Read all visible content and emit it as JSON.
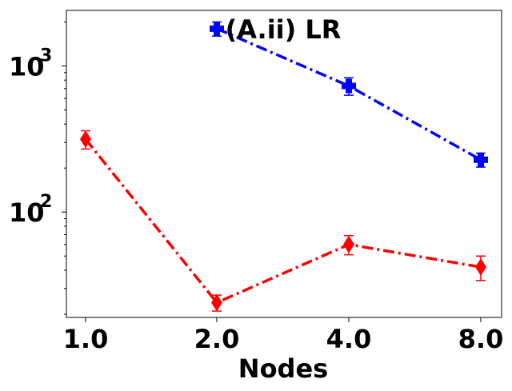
{
  "chart_data": {
    "type": "line",
    "title": "(A.ii) LR",
    "xlabel": "Nodes",
    "ylabel": "",
    "yscale": "log",
    "ylim": [
      19,
      2400
    ],
    "y_ticks": [
      {
        "value": 100,
        "base": "10",
        "exp": "2"
      },
      {
        "value": 1000,
        "base": "10",
        "exp": "3"
      }
    ],
    "categories": [
      "1.0",
      "2.0",
      "4.0",
      "8.0"
    ],
    "grid": false,
    "series": [
      {
        "color": "#0000ff",
        "marker": "plus",
        "linestyle": "dashdot",
        "values": [
          null,
          1800,
          730,
          228
        ],
        "errors": [
          null,
          200,
          100,
          25
        ]
      },
      {
        "color": "#ff0000",
        "marker": "diamond",
        "linestyle": "dashdot",
        "values": [
          315,
          24,
          60,
          42
        ],
        "errors": [
          45,
          3,
          9,
          8
        ]
      }
    ]
  }
}
